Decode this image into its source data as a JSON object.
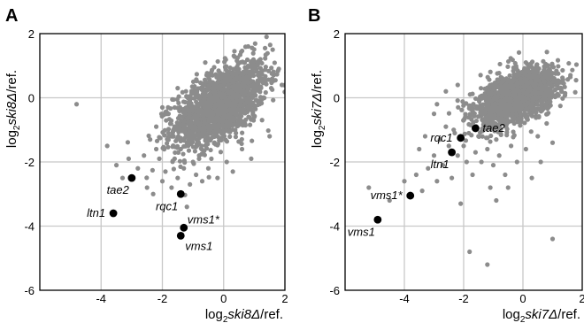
{
  "chart_data": [
    {
      "panel": "A",
      "type": "scatter",
      "xlabel": {
        "log": "log",
        "sub": "2",
        "gene": "ski8Δ",
        "suffix": "/ref."
      },
      "ylabel": {
        "log": "log",
        "sub": "2",
        "gene": "ski8Δ",
        "suffix": "/ref."
      },
      "xlim": [
        -6,
        2
      ],
      "ylim": [
        -6,
        2
      ],
      "xticks": [
        {
          "v": -4,
          "label": "-4"
        },
        {
          "v": -2,
          "label": "-2"
        },
        {
          "v": 0,
          "label": "0"
        },
        {
          "v": 2,
          "label": "2"
        }
      ],
      "yticks": [
        {
          "v": 2,
          "label": "2"
        },
        {
          "v": 0,
          "label": "0"
        },
        {
          "v": -2,
          "label": "-2"
        },
        {
          "v": -4,
          "label": "-4"
        },
        {
          "v": -6,
          "label": "-6"
        }
      ],
      "grid": true,
      "highlighted": [
        {
          "name": "tae2",
          "x": -3.0,
          "y": -2.5,
          "label_pos": "below-left"
        },
        {
          "name": "rqc1",
          "x": -1.4,
          "y": -3.0,
          "label_pos": "below-left"
        },
        {
          "name": "ltn1",
          "x": -3.6,
          "y": -3.6,
          "label_pos": "left"
        },
        {
          "name": "vms1*",
          "x": -1.3,
          "y": -4.05,
          "label_pos": "upper-right"
        },
        {
          "name": "vms1",
          "x": -1.4,
          "y": -4.3,
          "label_pos": "below-right"
        }
      ],
      "background_cloud": {
        "description": "dense gray scatter of all other genes",
        "center": [
          -0.1,
          -0.2
        ],
        "spread": [
          0.75,
          0.65
        ],
        "correlation": 0.55,
        "count": 1600,
        "outliers": [
          [
            -4.8,
            -0.2
          ],
          [
            -3.8,
            -1.5
          ],
          [
            -3.5,
            -2.1
          ],
          [
            -3.3,
            -2.5
          ],
          [
            -3.1,
            -1.9
          ],
          [
            -2.8,
            -2.2
          ],
          [
            -2.6,
            -1.8
          ],
          [
            -2.5,
            -2.8
          ],
          [
            -2.4,
            -1.3
          ],
          [
            -2.3,
            -3.0
          ],
          [
            -2.2,
            -0.9
          ],
          [
            -2.1,
            -1.9
          ],
          [
            -2.0,
            -2.6
          ],
          [
            -1.9,
            -2.3
          ],
          [
            -1.8,
            -1.1
          ],
          [
            -1.7,
            -2.8
          ],
          [
            -1.6,
            -1.9
          ],
          [
            -1.5,
            -2.5
          ],
          [
            -1.4,
            -1.6
          ],
          [
            -1.3,
            -2.2
          ],
          [
            -1.2,
            -3.4
          ],
          [
            -1.1,
            -2.7
          ],
          [
            -1.0,
            -2.0
          ],
          [
            -0.9,
            -2.4
          ],
          [
            -0.8,
            -1.8
          ],
          [
            -0.7,
            -2.6
          ],
          [
            -0.5,
            -2.2
          ],
          [
            -0.4,
            -1.9
          ],
          [
            -0.2,
            -2.5
          ],
          [
            0.1,
            -2.0
          ],
          [
            0.3,
            -2.3
          ],
          [
            0.6,
            -1.6
          ],
          [
            0.9,
            -1.9
          ],
          [
            1.2,
            1.2
          ],
          [
            1.4,
            1.9
          ],
          [
            1.6,
            1.5
          ],
          [
            1.8,
            0.9
          ],
          [
            1.9,
            0.4
          ],
          [
            1.5,
            -1.2
          ],
          [
            0.8,
            1.6
          ],
          [
            -0.6,
            1.1
          ],
          [
            -1.5,
            0.3
          ],
          [
            -2.0,
            -0.3
          ],
          [
            -1.8,
            -0.5
          ],
          [
            -1.2,
            -1.4
          ],
          [
            -0.3,
            -1.4
          ],
          [
            0.4,
            -1.1
          ],
          [
            1.0,
            -0.6
          ],
          [
            -1.6,
            -0.9
          ],
          [
            -2.2,
            -1.6
          ]
        ]
      }
    },
    {
      "panel": "B",
      "type": "scatter",
      "xlabel": {
        "log": "log",
        "sub": "2",
        "gene": "ski7Δ",
        "suffix": "/ref."
      },
      "ylabel": {
        "log": "log",
        "sub": "2",
        "gene": "ski7Δ",
        "suffix": "/ref."
      },
      "xlim": [
        -6,
        2
      ],
      "ylim": [
        -6,
        2
      ],
      "xticks": [
        {
          "v": -4,
          "label": "-4"
        },
        {
          "v": -2,
          "label": "-2"
        },
        {
          "v": 0,
          "label": "0"
        },
        {
          "v": 2,
          "label": "2"
        }
      ],
      "yticks": [
        {
          "v": 2,
          "label": "2"
        },
        {
          "v": 0,
          "label": "0"
        },
        {
          "v": -2,
          "label": "-2"
        },
        {
          "v": -4,
          "label": "-4"
        },
        {
          "v": -6,
          "label": "-6"
        }
      ],
      "grid": true,
      "highlighted": [
        {
          "name": "tae2",
          "x": -1.6,
          "y": -0.95,
          "label_pos": "right"
        },
        {
          "name": "rqc1",
          "x": -2.1,
          "y": -1.25,
          "label_pos": "left"
        },
        {
          "name": "ltn1",
          "x": -2.4,
          "y": -1.7,
          "label_pos": "below-left"
        },
        {
          "name": "vms1*",
          "x": -3.8,
          "y": -3.05,
          "label_pos": "left"
        },
        {
          "name": "vms1",
          "x": -4.9,
          "y": -3.8,
          "label_pos": "below-left"
        }
      ],
      "background_cloud": {
        "description": "dense gray scatter of all other genes",
        "center": [
          -0.25,
          0.0
        ],
        "spread": [
          0.7,
          0.45
        ],
        "correlation": 0.5,
        "count": 1600,
        "outliers": [
          [
            -5.2,
            -2.8
          ],
          [
            -4.5,
            -3.2
          ],
          [
            -4.0,
            -2.6
          ],
          [
            -3.6,
            -2.4
          ],
          [
            -3.4,
            -2.9
          ],
          [
            -3.2,
            -2.2
          ],
          [
            -3.0,
            -1.8
          ],
          [
            -2.9,
            -2.6
          ],
          [
            -2.8,
            -1.3
          ],
          [
            -2.7,
            -2.1
          ],
          [
            -2.6,
            -0.9
          ],
          [
            -2.5,
            -1.5
          ],
          [
            -2.4,
            -2.5
          ],
          [
            -2.3,
            -1.1
          ],
          [
            -2.2,
            -1.8
          ],
          [
            -2.1,
            -3.3
          ],
          [
            -2.0,
            -1.5
          ],
          [
            -1.9,
            -2.0
          ],
          [
            -1.8,
            -0.6
          ],
          [
            -1.7,
            -2.4
          ],
          [
            -1.6,
            -1.7
          ],
          [
            -1.5,
            -1.2
          ],
          [
            -1.4,
            -2.0
          ],
          [
            -1.3,
            -0.8
          ],
          [
            -1.2,
            -1.6
          ],
          [
            -1.0,
            -2.1
          ],
          [
            -0.9,
            -1.3
          ],
          [
            -0.8,
            -1.8
          ],
          [
            -0.6,
            -2.4
          ],
          [
            -0.4,
            -1.5
          ],
          [
            -0.2,
            -2.0
          ],
          [
            0.1,
            -1.6
          ],
          [
            0.3,
            -2.5
          ],
          [
            0.5,
            -1.2
          ],
          [
            0.8,
            -0.8
          ],
          [
            1.0,
            -1.4
          ],
          [
            -1.8,
            -4.8
          ],
          [
            -1.2,
            -5.2
          ],
          [
            1.0,
            -4.4
          ],
          [
            -3.0,
            -0.5
          ],
          [
            -2.6,
            0.2
          ],
          [
            -2.2,
            0.4
          ],
          [
            -3.3,
            -1.2
          ],
          [
            -1.1,
            -2.8
          ],
          [
            -0.5,
            -2.8
          ],
          [
            0.6,
            -2.0
          ],
          [
            1.3,
            0.2
          ],
          [
            -2.9,
            -0.2
          ],
          [
            -3.5,
            -1.6
          ],
          [
            -0.9,
            -3.2
          ]
        ]
      }
    }
  ]
}
